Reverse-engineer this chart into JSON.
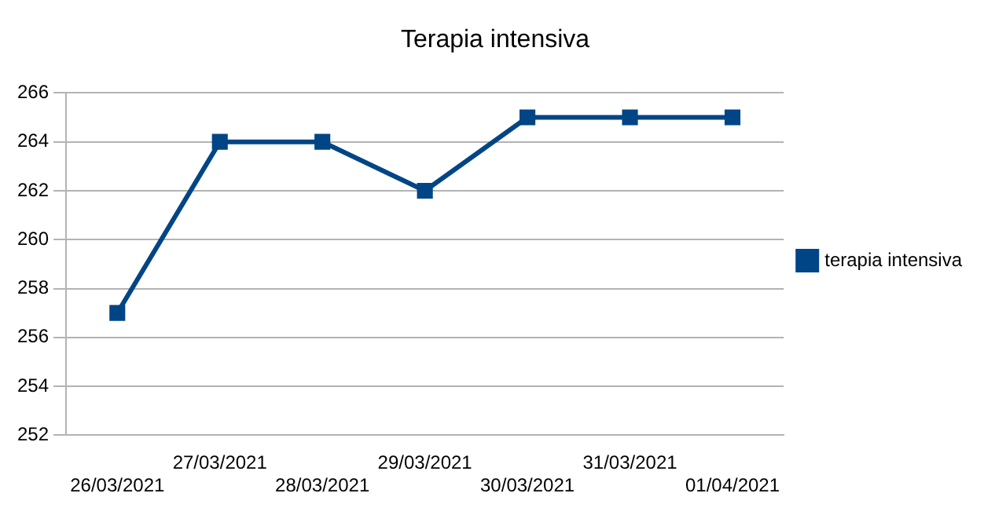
{
  "chart_data": {
    "type": "line",
    "title": "Terapia intensiva",
    "categories": [
      "26/03/2021",
      "27/03/2021",
      "28/03/2021",
      "29/03/2021",
      "30/03/2021",
      "31/03/2021",
      "01/04/2021"
    ],
    "series": [
      {
        "name": "terapia intensiva",
        "color": "#004586",
        "values": [
          257,
          264,
          264,
          262,
          265,
          265,
          265
        ]
      }
    ],
    "ylim": [
      252,
      266
    ],
    "yticks": [
      252,
      254,
      256,
      258,
      260,
      262,
      264,
      266
    ],
    "grid": "y",
    "legend": "right",
    "marker": "square",
    "line_style": "solid"
  }
}
